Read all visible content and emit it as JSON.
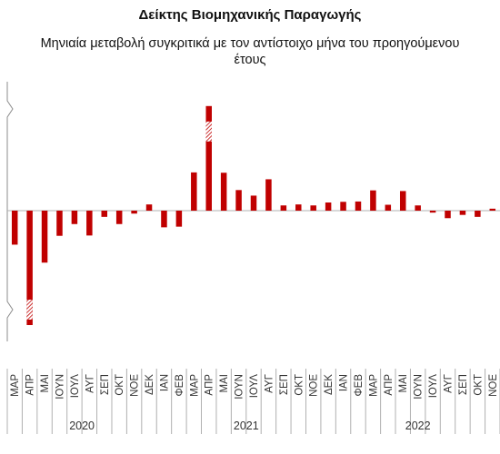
{
  "chart_data": {
    "type": "bar",
    "title": "Δείκτης Βιομηχανικής Παραγωγής",
    "subtitle": "Μηνιαία μεταβολή συγκριτικά με τον αντίστοιχο μήνα του προηγούμενου έτους",
    "xlabel": "",
    "ylabel": "",
    "ylim": [
      -25,
      25
    ],
    "grid": false,
    "axis_break": true,
    "categories": [
      "ΜΑΡ",
      "ΑΠΡ",
      "ΜΑΙ",
      "ΙΟΥΝ",
      "ΙΟΥΛ",
      "ΑΥΓ",
      "ΣΕΠ",
      "ΟΚΤ",
      "ΝΟΕ",
      "ΔΕΚ",
      "ΙΑΝ",
      "ΦΕΒ",
      "ΜΑΡ",
      "ΑΠΡ",
      "ΜΑΙ",
      "ΙΟΥΝ",
      "ΙΟΥΛ",
      "ΑΥΓ",
      "ΣΕΠ",
      "ΟΚΤ",
      "ΝΟΕ",
      "ΔΕΚ",
      "ΙΑΝ",
      "ΦΕΒ",
      "ΜΑΡ",
      "ΑΠΡ",
      "ΜΑΙ",
      "ΙΟΥΝ",
      "ΙΟΥΛ",
      "ΑΥΓ",
      "ΣΕΠ",
      "ΟΚΤ",
      "ΝΟΕ"
    ],
    "groups": [
      {
        "label": "2020",
        "start": 0,
        "count": 10
      },
      {
        "label": "2021",
        "start": 10,
        "count": 12
      },
      {
        "label": "2022",
        "start": 22,
        "count": 11
      }
    ],
    "series": [
      {
        "color": "#c00000",
        "values": [
          -10.4,
          -35.0,
          -15.9,
          -7.7,
          -4.1,
          -7.6,
          -1.9,
          -4.1,
          -0.9,
          1.9,
          -5.1,
          -4.9,
          11.7,
          32.0,
          11.6,
          6.3,
          4.6,
          9.6,
          1.6,
          1.9,
          1.6,
          2.5,
          2.7,
          2.8,
          6.2,
          1.8,
          6.0,
          1.6,
          -0.6,
          -2.3,
          -1.3,
          -1.9,
          0.6
        ],
        "broken": [
          1,
          13
        ]
      }
    ]
  }
}
